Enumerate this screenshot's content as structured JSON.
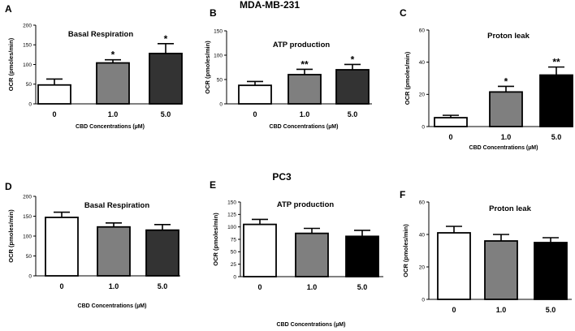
{
  "figure": {
    "row_titles": [
      "MDA-MB-231",
      "PC3"
    ]
  },
  "colors": {
    "bar_fills": [
      "#ffffff",
      "#7f7f7f",
      "#333333",
      "#000000"
    ],
    "stroke": "#000000"
  },
  "chart_data": [
    {
      "panel": "A",
      "type": "bar",
      "title": "Basal Respiration",
      "ylabel": "OCR (pmoles/min)",
      "xlabel": "CBD Concentrations (µM)",
      "categories": [
        "0",
        "1.0",
        "5.0"
      ],
      "values": [
        48,
        104,
        128
      ],
      "errors": [
        15,
        8,
        25
      ],
      "significance": [
        "",
        "*",
        "*"
      ],
      "fills": [
        "#ffffff",
        "#7f7f7f",
        "#333333"
      ],
      "ylim": [
        0,
        200
      ],
      "yticks": [
        0,
        50,
        100,
        150,
        200
      ]
    },
    {
      "panel": "B",
      "type": "bar",
      "title": "ATP production",
      "ylabel": "OCR (pmoles/min)",
      "xlabel": "CBD Concentrations (µM)",
      "categories": [
        "0",
        "1.0",
        "5.0"
      ],
      "values": [
        38,
        60,
        70
      ],
      "errors": [
        8,
        11,
        11
      ],
      "significance": [
        "",
        "**",
        "*"
      ],
      "fills": [
        "#ffffff",
        "#7f7f7f",
        "#333333"
      ],
      "ylim": [
        0,
        150
      ],
      "yticks": [
        0,
        50,
        100,
        150
      ]
    },
    {
      "panel": "C",
      "type": "bar",
      "title": "Proton leak",
      "ylabel": "OCR (pmoles/min)",
      "xlabel": "CBD Concentrations (µM)",
      "categories": [
        "0",
        "1.0",
        "5.0"
      ],
      "values": [
        5.5,
        21.5,
        32
      ],
      "errors": [
        1.5,
        3.5,
        5
      ],
      "significance": [
        "",
        "*",
        "**"
      ],
      "fills": [
        "#ffffff",
        "#7f7f7f",
        "#000000"
      ],
      "ylim": [
        0,
        60
      ],
      "yticks": [
        0,
        20,
        40,
        60
      ]
    },
    {
      "panel": "D",
      "type": "bar",
      "title": "Basal Respiration",
      "ylabel": "OCR (pmoles/min)",
      "xlabel": "CBD Concentrations (µM)",
      "categories": [
        "0",
        "1.0",
        "5.0"
      ],
      "values": [
        147,
        123,
        115
      ],
      "errors": [
        13,
        10,
        14
      ],
      "significance": [
        "",
        "",
        ""
      ],
      "fills": [
        "#ffffff",
        "#7f7f7f",
        "#333333"
      ],
      "ylim": [
        0,
        200
      ],
      "yticks": [
        0,
        50,
        100,
        150,
        200
      ]
    },
    {
      "panel": "E",
      "type": "bar",
      "title": "ATP production",
      "ylabel": "OCR (pmoles/min)",
      "xlabel": "CBD Concentrations (µM)",
      "categories": [
        "0",
        "1.0",
        "5.0"
      ],
      "values": [
        105,
        87,
        81
      ],
      "errors": [
        10,
        10,
        12
      ],
      "significance": [
        "",
        "",
        ""
      ],
      "fills": [
        "#ffffff",
        "#7f7f7f",
        "#000000"
      ],
      "ylim": [
        0,
        150
      ],
      "yticks": [
        0,
        25,
        50,
        75,
        100,
        125,
        150
      ]
    },
    {
      "panel": "F",
      "type": "bar",
      "title": "Proton leak",
      "ylabel": "OCR (pmoles/min)",
      "xlabel": "",
      "categories": [
        "0",
        "1.0",
        "5.0"
      ],
      "values": [
        41,
        36,
        35
      ],
      "errors": [
        4,
        4,
        3
      ],
      "significance": [
        "",
        "",
        ""
      ],
      "fills": [
        "#ffffff",
        "#7f7f7f",
        "#000000"
      ],
      "ylim": [
        0,
        60
      ],
      "yticks": [
        0,
        20,
        40,
        60
      ]
    }
  ]
}
